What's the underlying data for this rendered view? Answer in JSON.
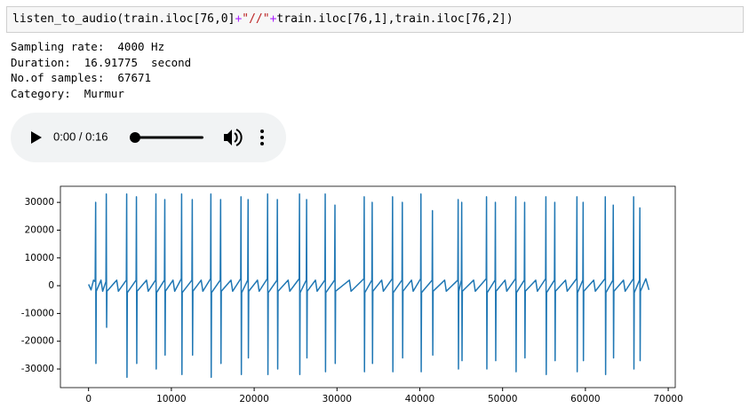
{
  "code": {
    "segments": [
      "listen_to_audio(train.iloc[76,0]",
      "+",
      "\"//\"",
      "+",
      "train.iloc[76,1],train.iloc[76,2])"
    ]
  },
  "output": {
    "lines": [
      "Sampling rate:  4000 Hz",
      "Duration:  16.91775  second",
      "No.of samples:  67671",
      "Category:  Murmur"
    ]
  },
  "audio": {
    "time": "0:00 / 0:16"
  },
  "chart_data": {
    "type": "line",
    "x": [
      0,
      300,
      600,
      800,
      856,
      890,
      930,
      1500,
      1700,
      2100,
      2141,
      2180,
      2220,
      3400,
      3600,
      4560,
      4602,
      4640,
      4680,
      5740,
      5780,
      5820,
      5860,
      7000,
      7200,
      8090,
      8134,
      8170,
      8210,
      9160,
      9205,
      9240,
      9280,
      10200,
      10400,
      11200,
      11238,
      11275,
      11310,
      12480,
      12523,
      12560,
      12600,
      13600,
      13800,
      14730,
      14770,
      14810,
      14850,
      15900,
      15948,
      15990,
      16030,
      17200,
      17400,
      18370,
      18409,
      18450,
      18490,
      19220,
      19266,
      19300,
      19340,
      20400,
      20600,
      21580,
      21621,
      21660,
      21700,
      22760,
      22798,
      22840,
      22880,
      24100,
      24300,
      25430,
      25474,
      25510,
      25550,
      26290,
      26330,
      26370,
      26410,
      27400,
      27600,
      28540,
      28578,
      28615,
      28650,
      29710,
      29755,
      29790,
      29830,
      31500,
      31700,
      33250,
      33287,
      33320,
      33360,
      34210,
      34251,
      34290,
      34330,
      35400,
      35600,
      36670,
      36712,
      36750,
      36790,
      37850,
      37890,
      37930,
      37970,
      39000,
      39200,
      40100,
      40137,
      40170,
      40210,
      41490,
      41529,
      41570,
      41610,
      43000,
      43200,
      44590,
      44633,
      44670,
      44710,
      45020,
      45061,
      45100,
      45140,
      46500,
      46700,
      48020,
      48058,
      48100,
      48140,
      49090,
      49128,
      49170,
      49210,
      50300,
      50500,
      51550,
      51590,
      51630,
      51670,
      52620,
      52661,
      52700,
      52740,
      54000,
      54200,
      55190,
      55229,
      55270,
      55310,
      56260,
      56300,
      56340,
      56380,
      57600,
      57800,
      58930,
      58976,
      59010,
      59050,
      59690,
      59725,
      59760,
      59800,
      61000,
      61200,
      62360,
      62401,
      62440,
      62480,
      63320,
      63364,
      63400,
      63440,
      64600,
      64800,
      65790,
      65826,
      65860,
      65900,
      66530,
      66575,
      66610,
      66650,
      67300,
      67671
    ],
    "series": [
      {
        "color": "#1f77b4",
        "values": [
          500,
          -1500,
          2000,
          1500,
          30000,
          -28000,
          -2000,
          2000,
          -2000,
          1500,
          33000,
          -15000,
          -2000,
          2000,
          -2000,
          2000,
          33000,
          -33000,
          -2500,
          2000,
          32000,
          -28000,
          -2000,
          2000,
          -2000,
          2000,
          33000,
          -30000,
          -2500,
          2000,
          31000,
          -25000,
          -2000,
          2000,
          -2000,
          2500,
          33000,
          -32000,
          -2500,
          2000,
          31000,
          -25000,
          -2000,
          2000,
          -2000,
          2500,
          33000,
          -33000,
          -2500,
          2000,
          31000,
          -28000,
          -2000,
          2000,
          -2000,
          2500,
          32000,
          -32000,
          -2500,
          2000,
          31000,
          -26000,
          -2000,
          2000,
          -2000,
          2500,
          33000,
          -32000,
          -2500,
          2000,
          31000,
          -30000,
          -2000,
          2000,
          -2000,
          2500,
          33000,
          -32000,
          -2500,
          2000,
          31000,
          -26000,
          -2000,
          2000,
          -2000,
          2000,
          33000,
          -31000,
          -2500,
          2000,
          29000,
          -28000,
          -2000,
          2000,
          -2000,
          2500,
          32000,
          -31000,
          -2500,
          2000,
          30000,
          -28000,
          -2000,
          2000,
          -2000,
          2500,
          32000,
          -31000,
          -2500,
          2000,
          30000,
          -26000,
          -2000,
          2000,
          -2000,
          2500,
          33000,
          -31000,
          -2500,
          2000,
          27000,
          -25000,
          -2000,
          2000,
          -2000,
          2000,
          31000,
          -30000,
          -2000,
          2000,
          30000,
          -27000,
          -2000,
          2000,
          -2000,
          2500,
          32000,
          -30000,
          -2500,
          2000,
          30000,
          -27000,
          -2000,
          2000,
          -2000,
          2500,
          32000,
          -31000,
          -2500,
          2000,
          30000,
          -26000,
          -2000,
          2000,
          -2000,
          2500,
          32000,
          -32000,
          -2500,
          2000,
          30000,
          -27000,
          -2000,
          2000,
          -2000,
          2500,
          32000,
          -31000,
          -2500,
          2000,
          30000,
          -27000,
          -2000,
          2000,
          -2000,
          2500,
          32000,
          -32000,
          -2500,
          2000,
          29000,
          -26000,
          -2000,
          2000,
          -2000,
          2500,
          32000,
          -30000,
          -2500,
          2000,
          28000,
          -27000,
          -2000,
          2500,
          -1500
        ]
      }
    ],
    "xlim": [
      -3400,
      70850
    ],
    "ylim": [
      -36700,
      35800
    ],
    "xticks": [
      0,
      10000,
      20000,
      30000,
      40000,
      50000,
      60000,
      70000
    ],
    "yticks": [
      -30000,
      -20000,
      -10000,
      0,
      10000,
      20000,
      30000
    ]
  }
}
